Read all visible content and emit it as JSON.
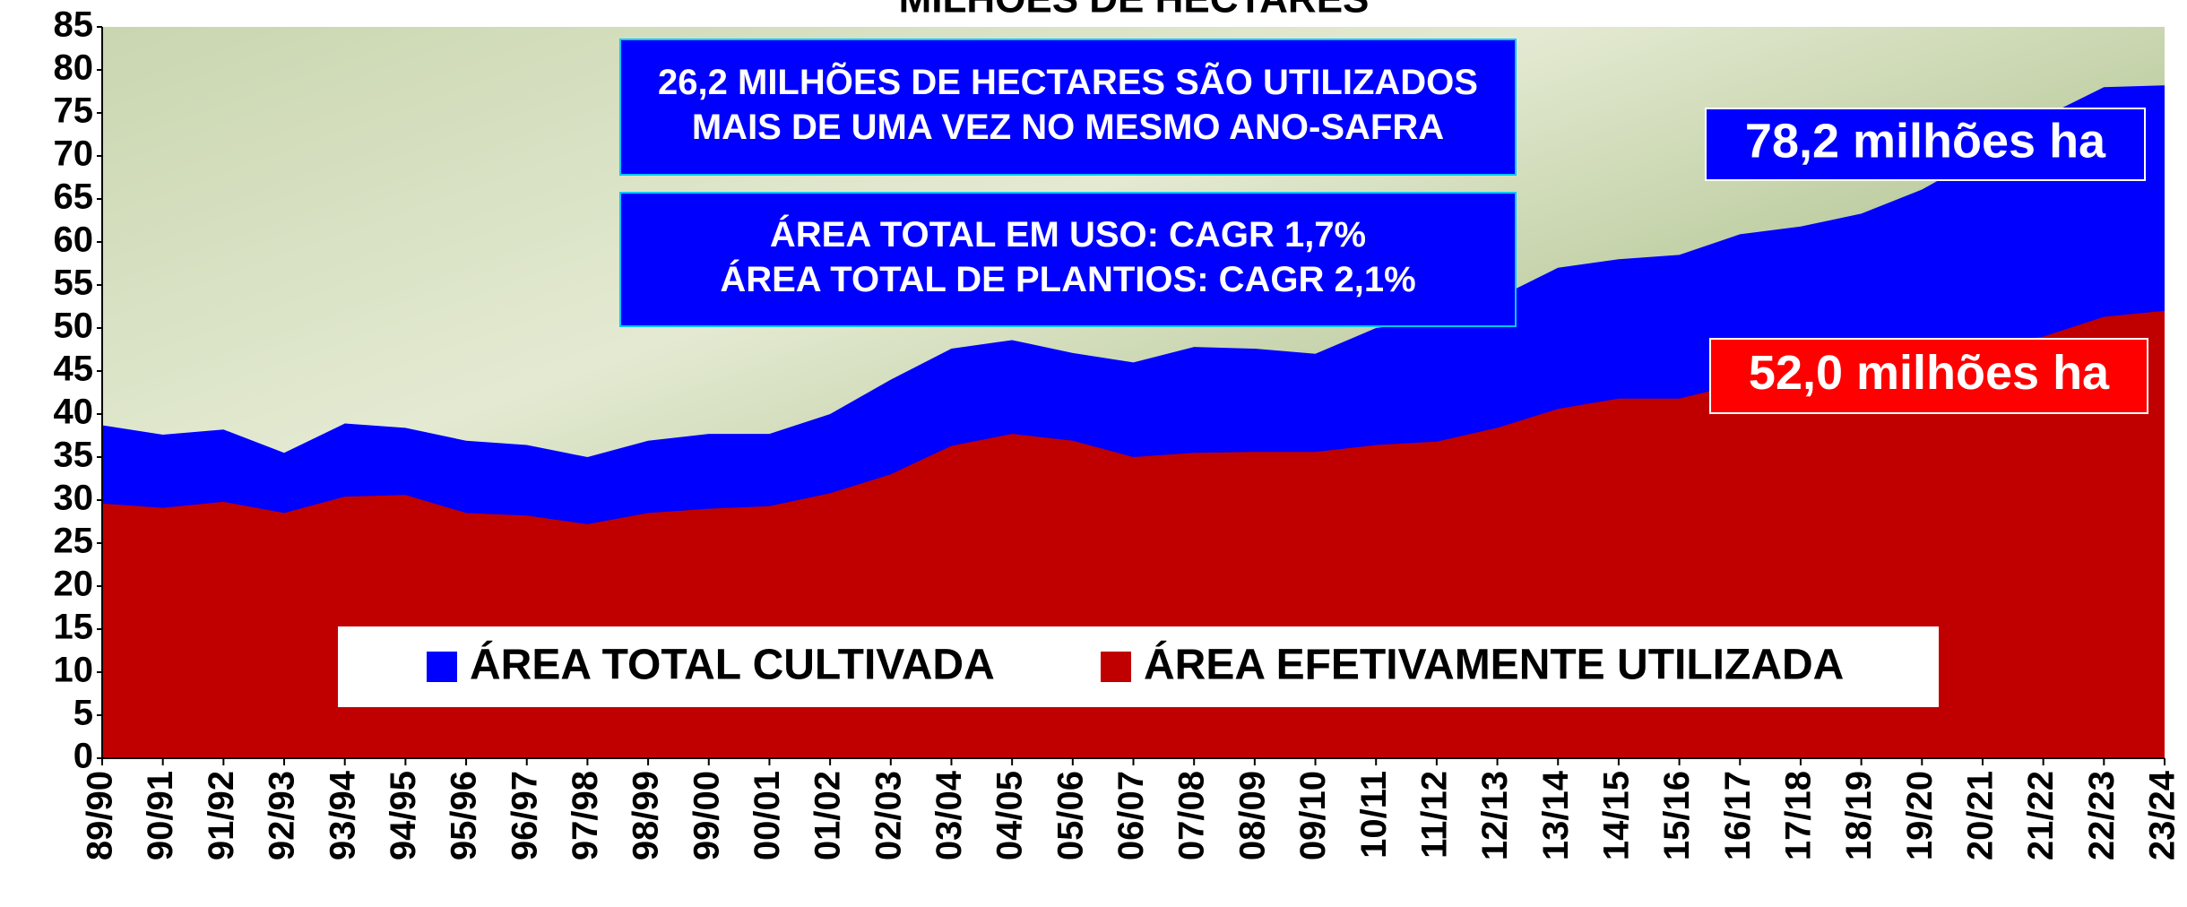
{
  "chart_data": {
    "type": "area",
    "title": "MILHÕES DE HECTARES",
    "categories": [
      "89/90",
      "90/91",
      "91/92",
      "92/93",
      "93/94",
      "94/95",
      "95/96",
      "96/97",
      "97/98",
      "98/99",
      "99/00",
      "00/01",
      "01/02",
      "02/03",
      "03/04",
      "04/05",
      "05/06",
      "06/07",
      "07/08",
      "08/09",
      "09/10",
      "10/11",
      "11/12",
      "12/13",
      "13/14",
      "14/15",
      "15/16",
      "16/17",
      "17/18",
      "18/19",
      "19/20",
      "20/21",
      "21/22",
      "22/23",
      "23/24"
    ],
    "series": [
      {
        "name": "ÁREA TOTAL CULTIVADA",
        "color": "#0000ff",
        "values": [
          38.7,
          37.6,
          38.2,
          35.5,
          38.9,
          38.4,
          36.9,
          36.4,
          35.0,
          36.9,
          37.7,
          37.7,
          40.0,
          44.0,
          47.6,
          48.6,
          47.1,
          46.0,
          47.8,
          47.6,
          47.0,
          50.0,
          51.0,
          53.5,
          57.0,
          58.0,
          58.5,
          60.9,
          61.8,
          63.3,
          66.1,
          70.0,
          74.5,
          78.0,
          78.2
        ]
      },
      {
        "name": "ÁREA EFETIVAMENTE UTILIZADA",
        "color": "#c00000",
        "values": [
          29.6,
          29.1,
          29.8,
          28.5,
          30.4,
          30.6,
          28.5,
          28.2,
          27.2,
          28.5,
          29.0,
          29.3,
          30.8,
          33.0,
          36.3,
          37.7,
          36.9,
          35.0,
          35.5,
          35.6,
          35.6,
          36.4,
          36.8,
          38.4,
          40.6,
          41.8,
          41.8,
          43.5,
          45.0,
          46.0,
          47.0,
          48.0,
          49.0,
          51.3,
          52.0
        ]
      }
    ],
    "ylim": [
      0,
      85
    ],
    "yticks": [
      0,
      5,
      10,
      15,
      20,
      25,
      30,
      35,
      40,
      45,
      50,
      55,
      60,
      65,
      70,
      75,
      80,
      85
    ],
    "annotations": [
      {
        "lines": [
          "26,2 MILHÕES DE HECTARES SÃO UTILIZADOS",
          "MAIS DE UMA VEZ NO MESMO ANO-SAFRA"
        ]
      },
      {
        "lines": [
          "ÁREA TOTAL EM USO: CAGR 1,7%",
          "ÁREA TOTAL DE PLANTIOS: CAGR 2,1%"
        ]
      },
      {
        "lines": [
          "78,2 milhões ha"
        ],
        "color": "#0000ff"
      },
      {
        "lines": [
          "52,0 milhões ha"
        ],
        "color": "#ff0000"
      }
    ]
  }
}
